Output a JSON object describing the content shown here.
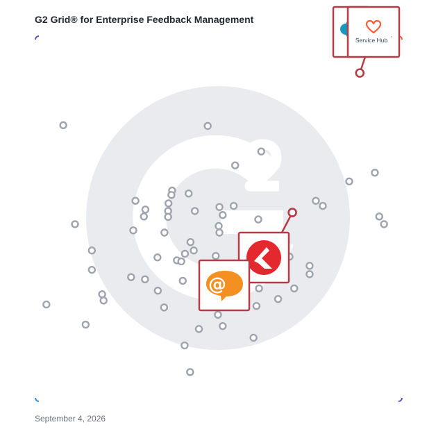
{
  "title": "G2 Grid® for Enterprise Feedback Management",
  "date": "September 4, 2026",
  "colors": {
    "frame_top_left": "#6c4bbd",
    "frame_top_right": "#f0562a",
    "frame_bottom_left": "#2a9ad6",
    "frame_bottom_right": "#6c4bbd",
    "dot": "#9ea3ad",
    "highlight": "#b53b46",
    "watermark": "#e9ebef",
    "brand_red": "#e3282e",
    "brand_orange": "#f49022",
    "hub_orange": "#ff5c35",
    "salesforce_blue": "#1798c1"
  },
  "chart_data": {
    "type": "scatter",
    "xlim": [
      0,
      100
    ],
    "ylim": [
      0,
      100
    ],
    "dividers": {
      "x": 50,
      "y": 50
    },
    "points": [
      {
        "x": 7.6,
        "y": 75.6
      },
      {
        "x": 47,
        "y": 75.4
      },
      {
        "x": 61.6,
        "y": 68.4
      },
      {
        "x": 54.5,
        "y": 64.6
      },
      {
        "x": 92.6,
        "y": 62.6
      },
      {
        "x": 85.6,
        "y": 60.2
      },
      {
        "x": 37.3,
        "y": 57.7
      },
      {
        "x": 37.1,
        "y": 56.5
      },
      {
        "x": 41.8,
        "y": 56.9
      },
      {
        "x": 36.3,
        "y": 54.2
      },
      {
        "x": 27.3,
        "y": 54.9
      },
      {
        "x": 36.2,
        "y": 52.1
      },
      {
        "x": 30.0,
        "y": 52.5
      },
      {
        "x": 43.5,
        "y": 52.1
      },
      {
        "x": 50.2,
        "y": 53.2
      },
      {
        "x": 54.1,
        "y": 53.5
      },
      {
        "x": 51.1,
        "y": 51.0
      },
      {
        "x": 76.5,
        "y": 54.9
      },
      {
        "x": 78.4,
        "y": 53.5
      },
      {
        "x": 29.6,
        "y": 50.6
      },
      {
        "x": 36.2,
        "y": 50.5
      },
      {
        "x": 60.8,
        "y": 49.8
      },
      {
        "x": 93.8,
        "y": 50.6
      },
      {
        "x": 95.1,
        "y": 48.5
      },
      {
        "x": 10.8,
        "y": 48.5
      },
      {
        "x": 26.7,
        "y": 46.8
      },
      {
        "x": 35.2,
        "y": 46.2
      },
      {
        "x": 50.0,
        "y": 48.0
      },
      {
        "x": 50.2,
        "y": 46.2
      },
      {
        "x": 42.3,
        "y": 43.6
      },
      {
        "x": 43.2,
        "y": 41.3
      },
      {
        "x": 15.4,
        "y": 41.3
      },
      {
        "x": 40.8,
        "y": 40.4
      },
      {
        "x": 33.3,
        "y": 39.4
      },
      {
        "x": 38.6,
        "y": 38.6
      },
      {
        "x": 39.8,
        "y": 38.3
      },
      {
        "x": 49.2,
        "y": 39.8
      },
      {
        "x": 69.3,
        "y": 39.6
      },
      {
        "x": 15.4,
        "y": 36.0
      },
      {
        "x": 74.8,
        "y": 37.1
      },
      {
        "x": 74.8,
        "y": 34.8
      },
      {
        "x": 26.1,
        "y": 34.0
      },
      {
        "x": 29.9,
        "y": 33.4
      },
      {
        "x": 40.2,
        "y": 33.0
      },
      {
        "x": 61.0,
        "y": 30.9
      },
      {
        "x": 70.6,
        "y": 30.9
      },
      {
        "x": 18.2,
        "y": 29.3
      },
      {
        "x": 33.4,
        "y": 30.3
      },
      {
        "x": 18.6,
        "y": 27.6
      },
      {
        "x": 66.2,
        "y": 28.0
      },
      {
        "x": 3.0,
        "y": 26.5
      },
      {
        "x": 35.1,
        "y": 25.7
      },
      {
        "x": 60.3,
        "y": 26.1
      },
      {
        "x": 49.8,
        "y": 23.7
      },
      {
        "x": 13.7,
        "y": 21.0
      },
      {
        "x": 51.1,
        "y": 20.6
      },
      {
        "x": 44.6,
        "y": 19.8
      },
      {
        "x": 59.5,
        "y": 17.4
      },
      {
        "x": 40.7,
        "y": 15.3
      },
      {
        "x": 42.2,
        "y": 8.0
      }
    ],
    "highlighted": [
      {
        "x": 88.5,
        "y": 89.9,
        "product": "Service Hub",
        "logo": "hubspot-service-hub"
      },
      {
        "x": 70.1,
        "y": 51.7,
        "product": "",
        "logo": "red-bird"
      },
      {
        "x": 49.5,
        "y": 36.5,
        "product": "",
        "logo": "orange-at-chat"
      }
    ],
    "logos": {
      "service_hub_label": "Service Hub",
      "service_hub_mark": "°",
      "at_symbol": "@"
    }
  }
}
